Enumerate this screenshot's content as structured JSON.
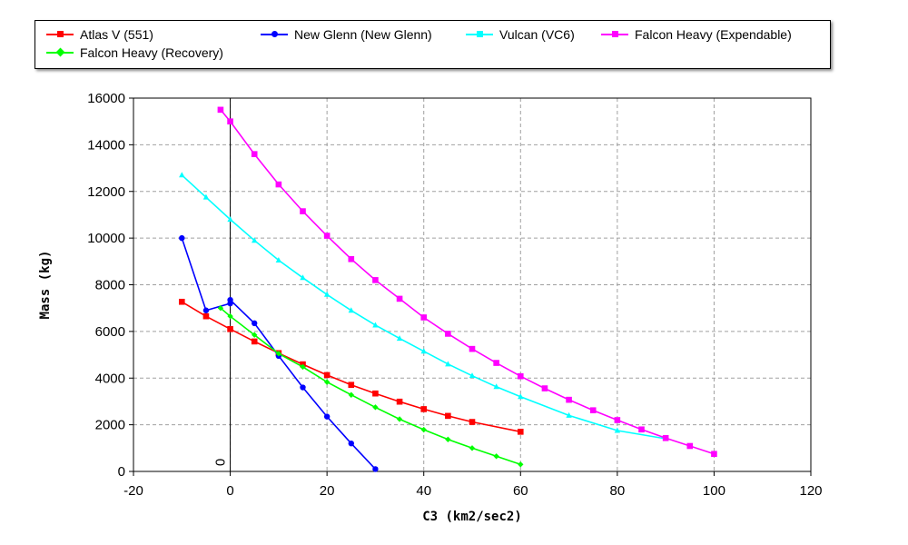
{
  "chart_data": {
    "type": "line",
    "title": "",
    "xlabel": "C3 (km2/sec2)",
    "ylabel": "Mass (kg)",
    "xlim": [
      -20,
      120
    ],
    "ylim": [
      0,
      16000
    ],
    "x_ticks": [
      "-20",
      "0",
      "20",
      "40",
      "60",
      "80",
      "100",
      "120"
    ],
    "y_ticks": [
      "0",
      "2000",
      "4000",
      "6000",
      "8000",
      "10000",
      "12000",
      "14000",
      "16000"
    ],
    "x_tick_values": [
      -20,
      0,
      20,
      40,
      60,
      80,
      100,
      120
    ],
    "y_tick_values": [
      0,
      2000,
      4000,
      6000,
      8000,
      10000,
      12000,
      14000,
      16000
    ],
    "grid": true,
    "legend_position": "top",
    "zero_line_label": "0",
    "series": [
      {
        "name": "Atlas V (551)",
        "color": "#ff0000",
        "marker": "square",
        "x": [
          -10,
          -5,
          0,
          5,
          10,
          15,
          20,
          25,
          30,
          35,
          40,
          45,
          50,
          60
        ],
        "y": [
          7270,
          6650,
          6100,
          5570,
          5070,
          4590,
          4130,
          3710,
          3340,
          2990,
          2670,
          2380,
          2120,
          1700
        ]
      },
      {
        "name": "New Glenn (New Glenn)",
        "color": "#0000ff",
        "marker": "circle",
        "x": [
          -10,
          -5,
          0,
          0,
          5,
          10,
          15,
          20,
          25,
          30
        ],
        "y": [
          10000,
          6900,
          7200,
          7350,
          6350,
          4950,
          3600,
          2350,
          1200,
          100
        ]
      },
      {
        "name": "Vulcan (VC6)",
        "color": "#00ffff",
        "marker": "triangle",
        "x": [
          -10,
          -5,
          0,
          5,
          10,
          15,
          20,
          25,
          30,
          35,
          40,
          45,
          50,
          55,
          60,
          70,
          80,
          90
        ],
        "y": [
          12700,
          11750,
          10800,
          9900,
          9050,
          8300,
          7580,
          6900,
          6270,
          5700,
          5150,
          4600,
          4100,
          3630,
          3200,
          2400,
          1750,
          1400
        ]
      },
      {
        "name": "Falcon Heavy (Expendable)",
        "color": "#ff00ff",
        "marker": "square",
        "x": [
          -2,
          0,
          5,
          10,
          15,
          20,
          25,
          30,
          35,
          40,
          45,
          50,
          55,
          60,
          65,
          70,
          75,
          80,
          85,
          90,
          95,
          100
        ],
        "y": [
          15500,
          15000,
          13600,
          12300,
          11150,
          10100,
          9100,
          8200,
          7400,
          6600,
          5900,
          5250,
          4650,
          4080,
          3560,
          3070,
          2620,
          2200,
          1800,
          1430,
          1090,
          750
        ]
      },
      {
        "name": "Falcon Heavy (Recovery)",
        "color": "#00ff00",
        "marker": "diamond",
        "x": [
          -2,
          0,
          5,
          10,
          15,
          20,
          25,
          30,
          35,
          40,
          45,
          50,
          55,
          60
        ],
        "y": [
          7000,
          6650,
          5850,
          5050,
          4480,
          3830,
          3280,
          2750,
          2240,
          1790,
          1370,
          1000,
          650,
          300
        ]
      }
    ]
  }
}
